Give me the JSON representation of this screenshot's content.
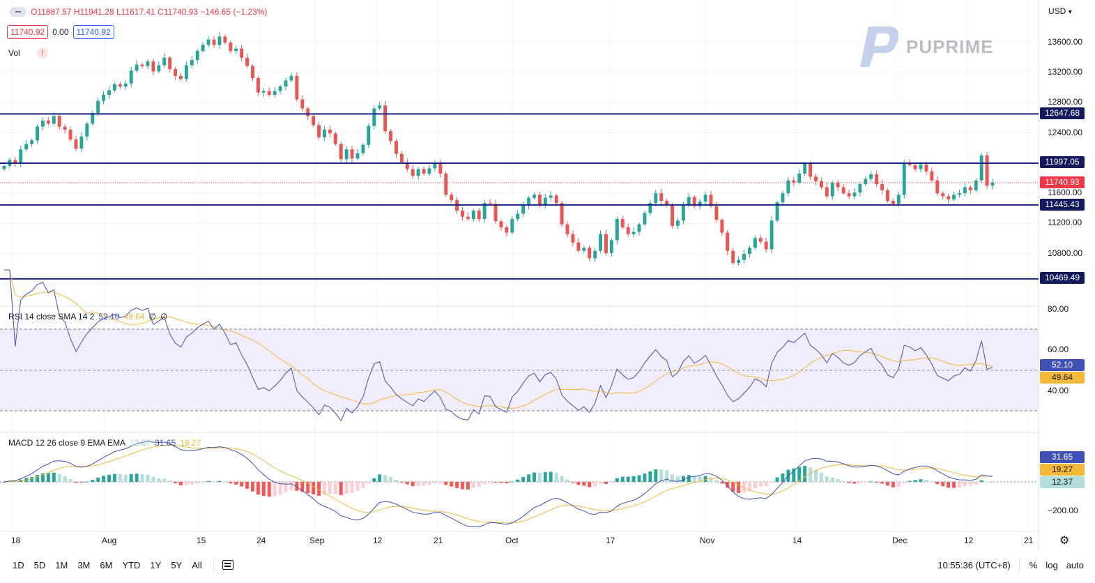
{
  "legend": {
    "ohlc_text": "O11887.57 H11941.28 L11617.41 C11740.93 −146.65 (−1.23%)",
    "bid": "11740.92",
    "spread": "0.00",
    "ask": "11740.92",
    "vol_label": "Vol",
    "vol_alert": "!"
  },
  "currency": "USD",
  "currency_caret": "▾",
  "watermark": "PUPRIME",
  "price_axis": [
    "13600.00",
    "13200.00",
    "12800.00",
    "12400.00",
    "11600.00",
    "11200.00",
    "10800.00"
  ],
  "price_tags": {
    "r1": "12647.68",
    "r2": "11997.05",
    "last": "11740.93",
    "s1": "11445.43",
    "s2": "10469.49"
  },
  "rsi": {
    "label": "RSI 14 close SMA 14 2",
    "rsi_value": "52.10",
    "sma_value": "49.64",
    "extra1": "∅",
    "extra2": "∅",
    "axis": [
      "80.00",
      "60.00",
      "40.00"
    ],
    "tag_rsi": "52.10",
    "tag_sma": "49.64"
  },
  "macd": {
    "label": "MACD 12 26 close 9 EMA EMA",
    "hist_value": "12.37",
    "macd_value": "31.65",
    "signal_value": "19.27",
    "axis": [
      "−200.00"
    ],
    "tag_macd": "31.65",
    "tag_signal": "19.27",
    "tag_hist": "12.37"
  },
  "time_axis": [
    "18",
    "Aug",
    "15",
    "24",
    "Sep",
    "12",
    "21",
    "Oct",
    "17",
    "Nov",
    "14",
    "Dec",
    "12",
    "21"
  ],
  "timeframes": [
    "1D",
    "5D",
    "1M",
    "3M",
    "6M",
    "YTD",
    "1Y",
    "5Y",
    "All"
  ],
  "clock": "10:55:36 (UTC+8)",
  "bottom_right": {
    "percent": "%",
    "log": "log",
    "auto": "auto"
  },
  "colors": {
    "up": "#26a69a",
    "down": "#ef5350",
    "level": "#1a237e",
    "last_price": "#f23645",
    "rsi": "#3f51b5",
    "rsi_sma": "#f5b93a",
    "macd": "#3f51b5",
    "signal": "#f5b93a",
    "rsi_band": "#f1edfa"
  },
  "chart_data": {
    "type": "candlestick",
    "y_range": [
      10350,
      13750
    ],
    "levels": [
      12647.68,
      11997.05,
      11445.43,
      10469.49
    ],
    "last_price": 11740.93,
    "closes": [
      11960,
      12040,
      11990,
      12180,
      12250,
      12300,
      12480,
      12560,
      12520,
      12620,
      12480,
      12440,
      12310,
      12190,
      12350,
      12520,
      12660,
      12820,
      12900,
      12960,
      13040,
      13010,
      13050,
      13220,
      13300,
      13280,
      13340,
      13210,
      13290,
      13390,
      13240,
      13150,
      13110,
      13290,
      13360,
      13480,
      13560,
      13630,
      13560,
      13670,
      13590,
      13480,
      13510,
      13390,
      13280,
      13120,
      12930,
      12950,
      12900,
      12950,
      13010,
      13090,
      13150,
      12840,
      12720,
      12620,
      12500,
      12340,
      12440,
      12390,
      12250,
      12050,
      12180,
      12060,
      12130,
      12240,
      12490,
      12720,
      12760,
      12420,
      12290,
      12120,
      12010,
      11920,
      11830,
      11920,
      11860,
      11930,
      11990,
      11860,
      11580,
      11510,
      11370,
      11290,
      11260,
      11370,
      11260,
      11470,
      11460,
      11230,
      11150,
      11080,
      11260,
      11330,
      11440,
      11540,
      11580,
      11440,
      11540,
      11570,
      11470,
      11190,
      11060,
      10950,
      10840,
      10880,
      10740,
      10840,
      11060,
      10810,
      10980,
      11260,
      11150,
      11060,
      11090,
      11190,
      11340,
      11470,
      11600,
      11500,
      11440,
      11170,
      11240,
      11440,
      11550,
      11430,
      11490,
      11580,
      11430,
      11250,
      11080,
      10840,
      10680,
      10720,
      10800,
      10880,
      11010,
      10960,
      10860,
      11240,
      11480,
      11600,
      11770,
      11740,
      11860,
      11990,
      11820,
      11760,
      11680,
      11560,
      11740,
      11680,
      11600,
      11560,
      11610,
      11720,
      11790,
      11850,
      11720,
      11640,
      11500,
      11460,
      11580,
      11990,
      11970,
      11920,
      11980,
      11890,
      11770,
      11600,
      11560,
      11520,
      11580,
      11600,
      11680,
      11640,
      11770,
      12100,
      11700,
      11740
    ]
  }
}
